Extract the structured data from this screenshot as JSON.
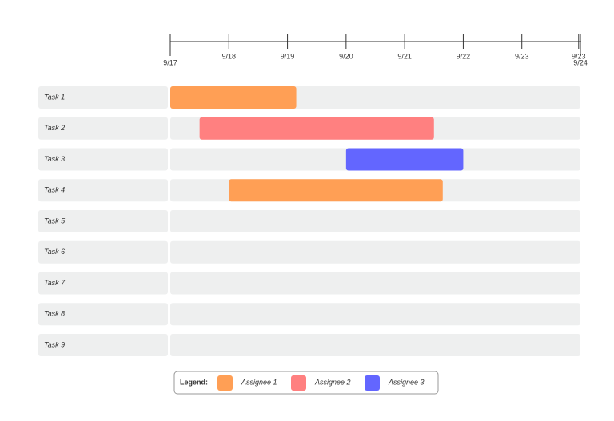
{
  "chart_data": {
    "type": "gantt",
    "xlim": [
      17,
      24
    ],
    "xticks": [
      {
        "value": 17,
        "label": "9/17"
      },
      {
        "value": 18,
        "label": "9/18"
      },
      {
        "value": 19,
        "label": "9/19"
      },
      {
        "value": 20,
        "label": "9/20"
      },
      {
        "value": 21,
        "label": "9/21"
      },
      {
        "value": 22,
        "label": "9/22"
      },
      {
        "value": 23,
        "label": "9/23"
      },
      {
        "value": 23.97,
        "label": "9/23"
      },
      {
        "value": 24,
        "label": "9/24"
      }
    ],
    "categories": [
      "Task 1",
      "Task 2",
      "Task 3",
      "Task 4",
      "Task 5",
      "Task 6",
      "Task 7",
      "Task 8",
      "Task 9"
    ],
    "series": [
      {
        "name": "Assignee 1",
        "color": "#ff9f55",
        "start": [
          17,
          null,
          null,
          18,
          null,
          null,
          null,
          null,
          null
        ],
        "end": [
          19.15,
          null,
          null,
          21.65,
          null,
          null,
          null,
          null,
          null
        ]
      },
      {
        "name": "Assignee 2",
        "color": "#ff8080",
        "start": [
          null,
          17.5,
          null,
          null,
          null,
          null,
          null,
          null,
          null
        ],
        "end": [
          null,
          21.5,
          null,
          null,
          null,
          null,
          null,
          null,
          null
        ]
      },
      {
        "name": "Assignee 3",
        "color": "#6366ff",
        "start": [
          null,
          null,
          20,
          null,
          null,
          null,
          null,
          null,
          null
        ],
        "end": [
          null,
          null,
          22,
          null,
          null,
          null,
          null,
          null,
          null
        ]
      }
    ],
    "legend_title": "Legend:"
  }
}
